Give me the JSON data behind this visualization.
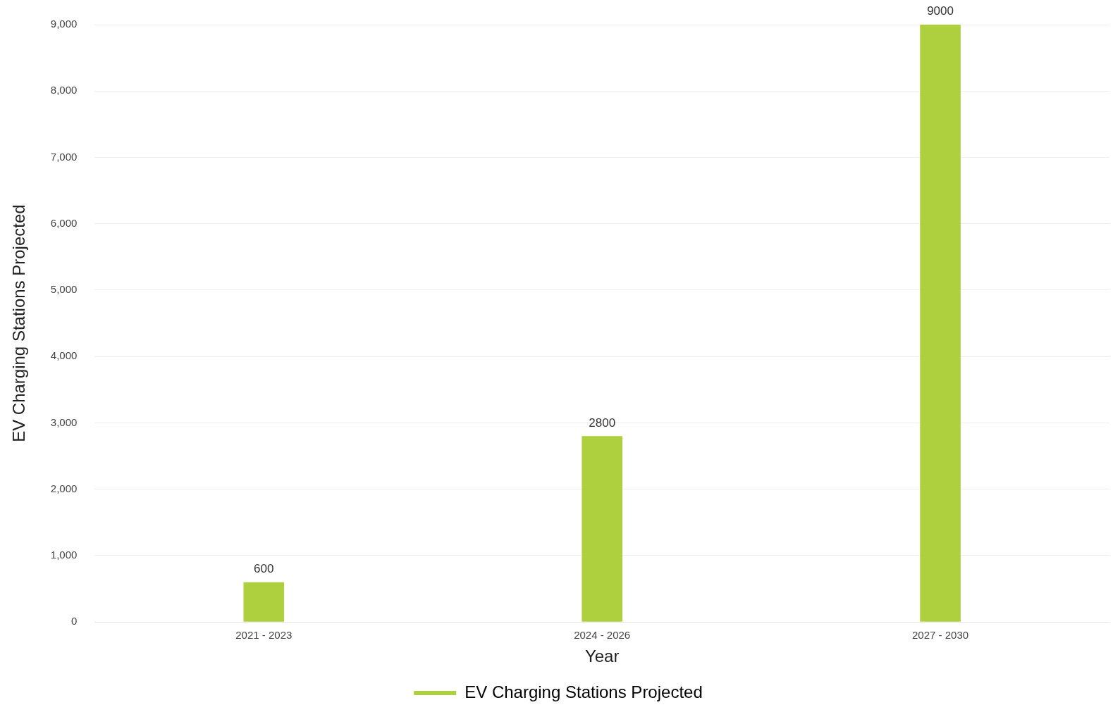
{
  "chart_data": {
    "type": "bar",
    "xlabel": "Year",
    "ylabel": "EV Charging Stations Projected",
    "categories": [
      "2021 - 2023",
      "2024 - 2026",
      "2027 - 2030"
    ],
    "series": [
      {
        "name": "EV Charging Stations Projected",
        "color": "#aed03f",
        "values": [
          600,
          2800,
          9000
        ]
      }
    ],
    "ylim": [
      0,
      9000
    ],
    "yticks": [
      0,
      {
        "value": 1000,
        "label": "1,000"
      },
      {
        "value": 2000,
        "label": "2,000"
      },
      {
        "value": 3000,
        "label": "3,000"
      },
      {
        "value": 4000,
        "label": "4,000"
      },
      {
        "value": 5000,
        "label": "5,000"
      },
      {
        "value": 6000,
        "label": "6,000"
      },
      {
        "value": 7000,
        "label": "7,000"
      },
      {
        "value": 8000,
        "label": "8,000"
      },
      {
        "value": 9000,
        "label": "9,000"
      }
    ],
    "grid": "y",
    "legend": "bottom",
    "data_labels": true
  }
}
